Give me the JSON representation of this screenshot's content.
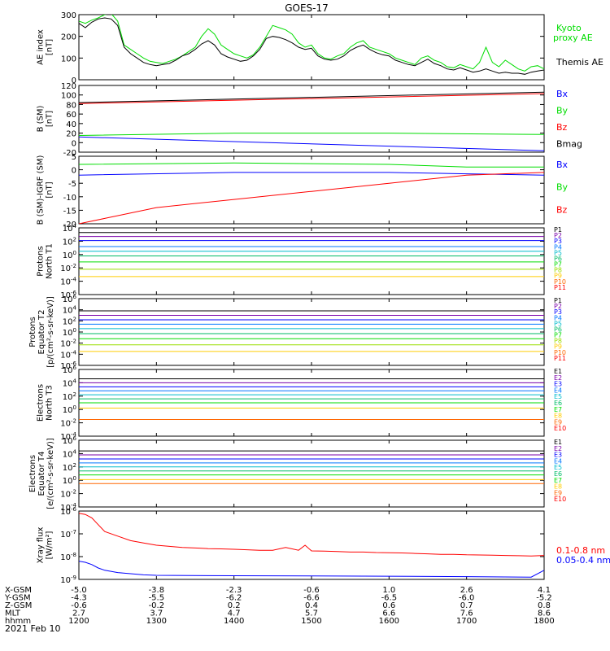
{
  "title": "GOES-17",
  "date_label": "2021 Feb 10",
  "colors": {
    "black": "#000000",
    "green": "#00dd00",
    "blue": "#0000ff",
    "red": "#ff0000"
  },
  "chart_data": [
    {
      "type": "line",
      "panel": "ae",
      "ylabel": [
        "AE index",
        "[nT]"
      ],
      "ylim": [
        0,
        300
      ],
      "yticks": [
        "0",
        "100",
        "200",
        "300"
      ],
      "legend": [
        "Kyoto",
        "proxy AE",
        "Themis AE"
      ],
      "series": [
        {
          "name": "Kyoto proxy AE",
          "color": "#00dd00",
          "x": [
            1200,
            1205,
            1210,
            1215,
            1220,
            1225,
            1230,
            1235,
            1240,
            1245,
            1250,
            1255,
            1300,
            1305,
            1310,
            1315,
            1320,
            1325,
            1330,
            1335,
            1340,
            1345,
            1350,
            1355,
            1400,
            1405,
            1410,
            1415,
            1420,
            1425,
            1430,
            1435,
            1440,
            1445,
            1450,
            1455,
            1500,
            1505,
            1510,
            1515,
            1520,
            1525,
            1530,
            1535,
            1540,
            1545,
            1550,
            1555,
            1600,
            1605,
            1610,
            1615,
            1620,
            1625,
            1630,
            1635,
            1640,
            1645,
            1650,
            1655,
            1700,
            1705,
            1710,
            1715,
            1720,
            1725,
            1730,
            1735,
            1740,
            1745,
            1750,
            1755,
            1800
          ],
          "y": [
            270,
            260,
            275,
            285,
            300,
            305,
            270,
            160,
            140,
            120,
            100,
            85,
            80,
            75,
            85,
            95,
            110,
            130,
            150,
            200,
            235,
            210,
            160,
            140,
            120,
            110,
            100,
            115,
            150,
            200,
            250,
            240,
            230,
            210,
            170,
            150,
            160,
            120,
            100,
            95,
            110,
            120,
            150,
            170,
            180,
            150,
            140,
            130,
            120,
            100,
            90,
            80,
            70,
            100,
            110,
            90,
            80,
            60,
            55,
            70,
            60,
            50,
            80,
            150,
            80,
            60,
            90,
            70,
            50,
            40,
            60,
            65,
            50
          ]
        },
        {
          "name": "Themis AE",
          "color": "#000000",
          "x": [
            1200,
            1205,
            1210,
            1215,
            1220,
            1225,
            1230,
            1235,
            1240,
            1245,
            1250,
            1255,
            1300,
            1305,
            1310,
            1315,
            1320,
            1325,
            1330,
            1335,
            1340,
            1345,
            1350,
            1355,
            1400,
            1405,
            1410,
            1415,
            1420,
            1425,
            1430,
            1435,
            1440,
            1445,
            1450,
            1455,
            1500,
            1505,
            1510,
            1515,
            1520,
            1525,
            1530,
            1535,
            1540,
            1545,
            1550,
            1555,
            1600,
            1605,
            1610,
            1615,
            1620,
            1625,
            1630,
            1635,
            1640,
            1645,
            1650,
            1655,
            1700,
            1705,
            1710,
            1715,
            1720,
            1725,
            1730,
            1735,
            1740,
            1745,
            1750,
            1755,
            1800
          ],
          "y": [
            260,
            240,
            265,
            280,
            285,
            280,
            250,
            150,
            120,
            100,
            80,
            70,
            65,
            70,
            75,
            90,
            110,
            120,
            140,
            165,
            180,
            160,
            120,
            105,
            95,
            85,
            90,
            110,
            140,
            190,
            200,
            195,
            185,
            170,
            150,
            140,
            145,
            110,
            95,
            90,
            95,
            110,
            135,
            150,
            160,
            140,
            125,
            115,
            110,
            90,
            80,
            70,
            65,
            80,
            95,
            75,
            65,
            50,
            45,
            55,
            45,
            35,
            40,
            50,
            40,
            30,
            35,
            30,
            30,
            25,
            35,
            40,
            45
          ]
        }
      ]
    },
    {
      "type": "line",
      "panel": "bsm",
      "ylabel": [
        "B (SM)",
        "[nT]"
      ],
      "ylim": [
        -20,
        120
      ],
      "yticks": [
        "-20",
        "0",
        "20",
        "40",
        "60",
        "80",
        "100",
        "120"
      ],
      "legend": [
        "Bx",
        "By",
        "Bz",
        "Bmag"
      ],
      "series": [
        {
          "name": "Bx",
          "color": "#0000ff",
          "x": [
            1200,
            1800
          ],
          "y": [
            12,
            -17
          ]
        },
        {
          "name": "By",
          "color": "#00dd00",
          "x": [
            1200,
            1400,
            1600,
            1800
          ],
          "y": [
            15,
            20,
            20,
            17
          ]
        },
        {
          "name": "Bz",
          "color": "#ff0000",
          "x": [
            1200,
            1800
          ],
          "y": [
            82,
            103
          ]
        },
        {
          "name": "Bmag",
          "color": "#000000",
          "x": [
            1200,
            1800
          ],
          "y": [
            84,
            106
          ]
        }
      ]
    },
    {
      "type": "line",
      "panel": "digrf",
      "ylabel": [
        "B (SM)-IGRF (SM)",
        "[nT]"
      ],
      "ylim": [
        -20,
        5
      ],
      "yticks": [
        "-20",
        "-15",
        "-10",
        "-5",
        "0",
        "5"
      ],
      "legend": [
        "Bx",
        "By",
        "Bz"
      ],
      "series": [
        {
          "name": "Bx",
          "color": "#0000ff",
          "x": [
            1200,
            1400,
            1600,
            1700,
            1800
          ],
          "y": [
            -2,
            -1,
            -1,
            -1.5,
            -2
          ]
        },
        {
          "name": "By",
          "color": "#00dd00",
          "x": [
            1200,
            1400,
            1600,
            1700,
            1800
          ],
          "y": [
            2,
            2.5,
            2,
            1,
            1
          ]
        },
        {
          "name": "Bz",
          "color": "#ff0000",
          "x": [
            1200,
            1220,
            1300,
            1400,
            1500,
            1600,
            1700,
            1800
          ],
          "y": [
            -20,
            -18,
            -14,
            -11,
            -8,
            -5,
            -2,
            -1
          ]
        }
      ]
    },
    {
      "type": "line",
      "panel": "protons_t1",
      "ylabel": [
        "Protons",
        "North T1"
      ],
      "ylim": [
        -6,
        4
      ],
      "log": true,
      "yticks": [
        "10^4",
        "10^2",
        "10^0",
        "10^-2",
        "10^-4",
        "10^-6"
      ],
      "legend": [
        "P1",
        "P2",
        "P3",
        "P4",
        "P5",
        "P6",
        "P7",
        "P8",
        "P9",
        "P10",
        "P11"
      ],
      "legend_colors": [
        "#000000",
        "#7a00aa",
        "#0000ff",
        "#0077ff",
        "#00bbcc",
        "#00bb66",
        "#00dd00",
        "#99dd00",
        "#ffcc00",
        "#ff6600",
        "#ff0000"
      ],
      "levels": [
        3.3,
        2.7,
        2.1,
        1.2,
        0.5,
        -0.2,
        -1.1,
        -2.2,
        -3.3
      ]
    },
    {
      "type": "line",
      "panel": "protons_t2",
      "ylabel": [
        "Protons",
        "Equator T2",
        "[p/(cm²-s-sr-keV)]"
      ],
      "ylim": [
        -6,
        6
      ],
      "log": true,
      "yticks": [
        "10^6",
        "10^4",
        "10^2",
        "10^0",
        "10^-2",
        "10^-4",
        "10^-6"
      ],
      "legend": [
        "P1",
        "P2",
        "P3",
        "P4",
        "P5",
        "P6",
        "P7",
        "P8",
        "P9",
        "P10",
        "P11"
      ],
      "legend_colors": [
        "#000000",
        "#7a00aa",
        "#0000ff",
        "#0077ff",
        "#00bbcc",
        "#00bb66",
        "#00dd00",
        "#99dd00",
        "#ffcc00",
        "#ff6600",
        "#ff0000"
      ],
      "levels": [
        3.8,
        3.0,
        2.2,
        1.4,
        0.6,
        -0.3,
        -1.2,
        -2.3,
        -3.5
      ]
    },
    {
      "type": "line",
      "panel": "electrons_t3",
      "ylabel": [
        "Electrons",
        "North T3"
      ],
      "ylim": [
        -4,
        6
      ],
      "log": true,
      "yticks": [
        "10^6",
        "10^4",
        "10^2",
        "10^0",
        "10^-2",
        "10^-4"
      ],
      "legend": [
        "E1",
        "E2",
        "E3",
        "E4",
        "E5",
        "E6",
        "E7",
        "E8",
        "E9",
        "E10"
      ],
      "legend_colors": [
        "#000000",
        "#7a00aa",
        "#0000ff",
        "#0077ff",
        "#00bbcc",
        "#00bb66",
        "#00dd00",
        "#ffcc00",
        "#ff6600",
        "#ff0000"
      ],
      "levels": [
        4.6,
        4.0,
        3.4,
        2.8,
        2.2,
        1.6,
        1.0,
        0.2,
        -1.5
      ]
    },
    {
      "type": "line",
      "panel": "electrons_t4",
      "ylabel": [
        "Electrons",
        "Equator T4",
        "[e/(cm²-s-sr-keV)]"
      ],
      "ylim": [
        -4,
        6
      ],
      "log": true,
      "yticks": [
        "10^6",
        "10^4",
        "10^2",
        "10^0",
        "10^-2",
        "10^-4"
      ],
      "legend": [
        "E1",
        "E2",
        "E3",
        "E4",
        "E5",
        "E6",
        "E7",
        "E8",
        "E9",
        "E10"
      ],
      "legend_colors": [
        "#000000",
        "#7a00aa",
        "#0000ff",
        "#0077ff",
        "#00bbcc",
        "#00bb66",
        "#00dd00",
        "#ffcc00",
        "#ff6600",
        "#ff0000"
      ],
      "levels": [
        4.4,
        3.8,
        3.2,
        2.6,
        2.0,
        1.4,
        0.8,
        0.1,
        -0.5
      ]
    },
    {
      "type": "line",
      "panel": "xray",
      "ylabel": [
        "Xray flux",
        "[W/m²]"
      ],
      "ylim": [
        -9,
        -6
      ],
      "log": true,
      "yticks": [
        "10^-6",
        "10^-7",
        "10^-8",
        "10^-9"
      ],
      "legend": [
        "0.1-0.8 nm",
        "0.05-0.4 nm"
      ],
      "series": [
        {
          "name": "0.1-0.8 nm",
          "color": "#ff0000",
          "x": [
            1200,
            1205,
            1210,
            1215,
            1220,
            1230,
            1240,
            1250,
            1300,
            1310,
            1320,
            1330,
            1340,
            1350,
            1400,
            1410,
            1420,
            1430,
            1440,
            1450,
            1455,
            1500,
            1510,
            1520,
            1530,
            1540,
            1550,
            1600,
            1610,
            1620,
            1630,
            1640,
            1650,
            1700,
            1710,
            1720,
            1730,
            1740,
            1750,
            1800
          ],
          "y": [
            -6.1,
            -6.15,
            -6.3,
            -6.6,
            -6.9,
            -7.1,
            -7.3,
            -7.4,
            -7.5,
            -7.55,
            -7.6,
            -7.62,
            -7.65,
            -7.66,
            -7.68,
            -7.7,
            -7.72,
            -7.72,
            -7.6,
            -7.72,
            -7.5,
            -7.75,
            -7.76,
            -7.78,
            -7.8,
            -7.8,
            -7.82,
            -7.83,
            -7.84,
            -7.86,
            -7.88,
            -7.9,
            -7.9,
            -7.92,
            -7.93,
            -7.94,
            -7.95,
            -7.96,
            -7.97,
            -7.95
          ]
        },
        {
          "name": "0.05-0.4 nm",
          "color": "#0000ff",
          "x": [
            1200,
            1205,
            1210,
            1215,
            1220,
            1230,
            1240,
            1250,
            1300,
            1400,
            1500,
            1600,
            1700,
            1750,
            1800
          ],
          "y": [
            -8.2,
            -8.25,
            -8.35,
            -8.5,
            -8.6,
            -8.7,
            -8.75,
            -8.8,
            -8.82,
            -8.84,
            -8.85,
            -8.86,
            -8.88,
            -8.9,
            -8.6
          ]
        }
      ]
    }
  ],
  "xaxis": {
    "ticks": [
      1200,
      1300,
      1400,
      1500,
      1600,
      1700,
      1800
    ],
    "row_labels": [
      "X-GSM",
      "Y-GSM",
      "Z-GSM",
      "MLT",
      "hhmm"
    ],
    "rows": [
      [
        "-5.0",
        "-3.8",
        "-2.3",
        "-0.6",
        "1.0",
        "2.6",
        "4.1"
      ],
      [
        "-4.3",
        "-5.5",
        "-6.2",
        "-6.6",
        "-6.5",
        "-6.0",
        "-5.2"
      ],
      [
        "-0.6",
        "-0.2",
        "0.2",
        "0.4",
        "0.6",
        "0.7",
        "0.8"
      ],
      [
        "2.7",
        "3.7",
        "4.7",
        "5.7",
        "6.6",
        "7.6",
        "8.6"
      ],
      [
        "1200",
        "1300",
        "1400",
        "1500",
        "1600",
        "1700",
        "1800"
      ]
    ]
  }
}
